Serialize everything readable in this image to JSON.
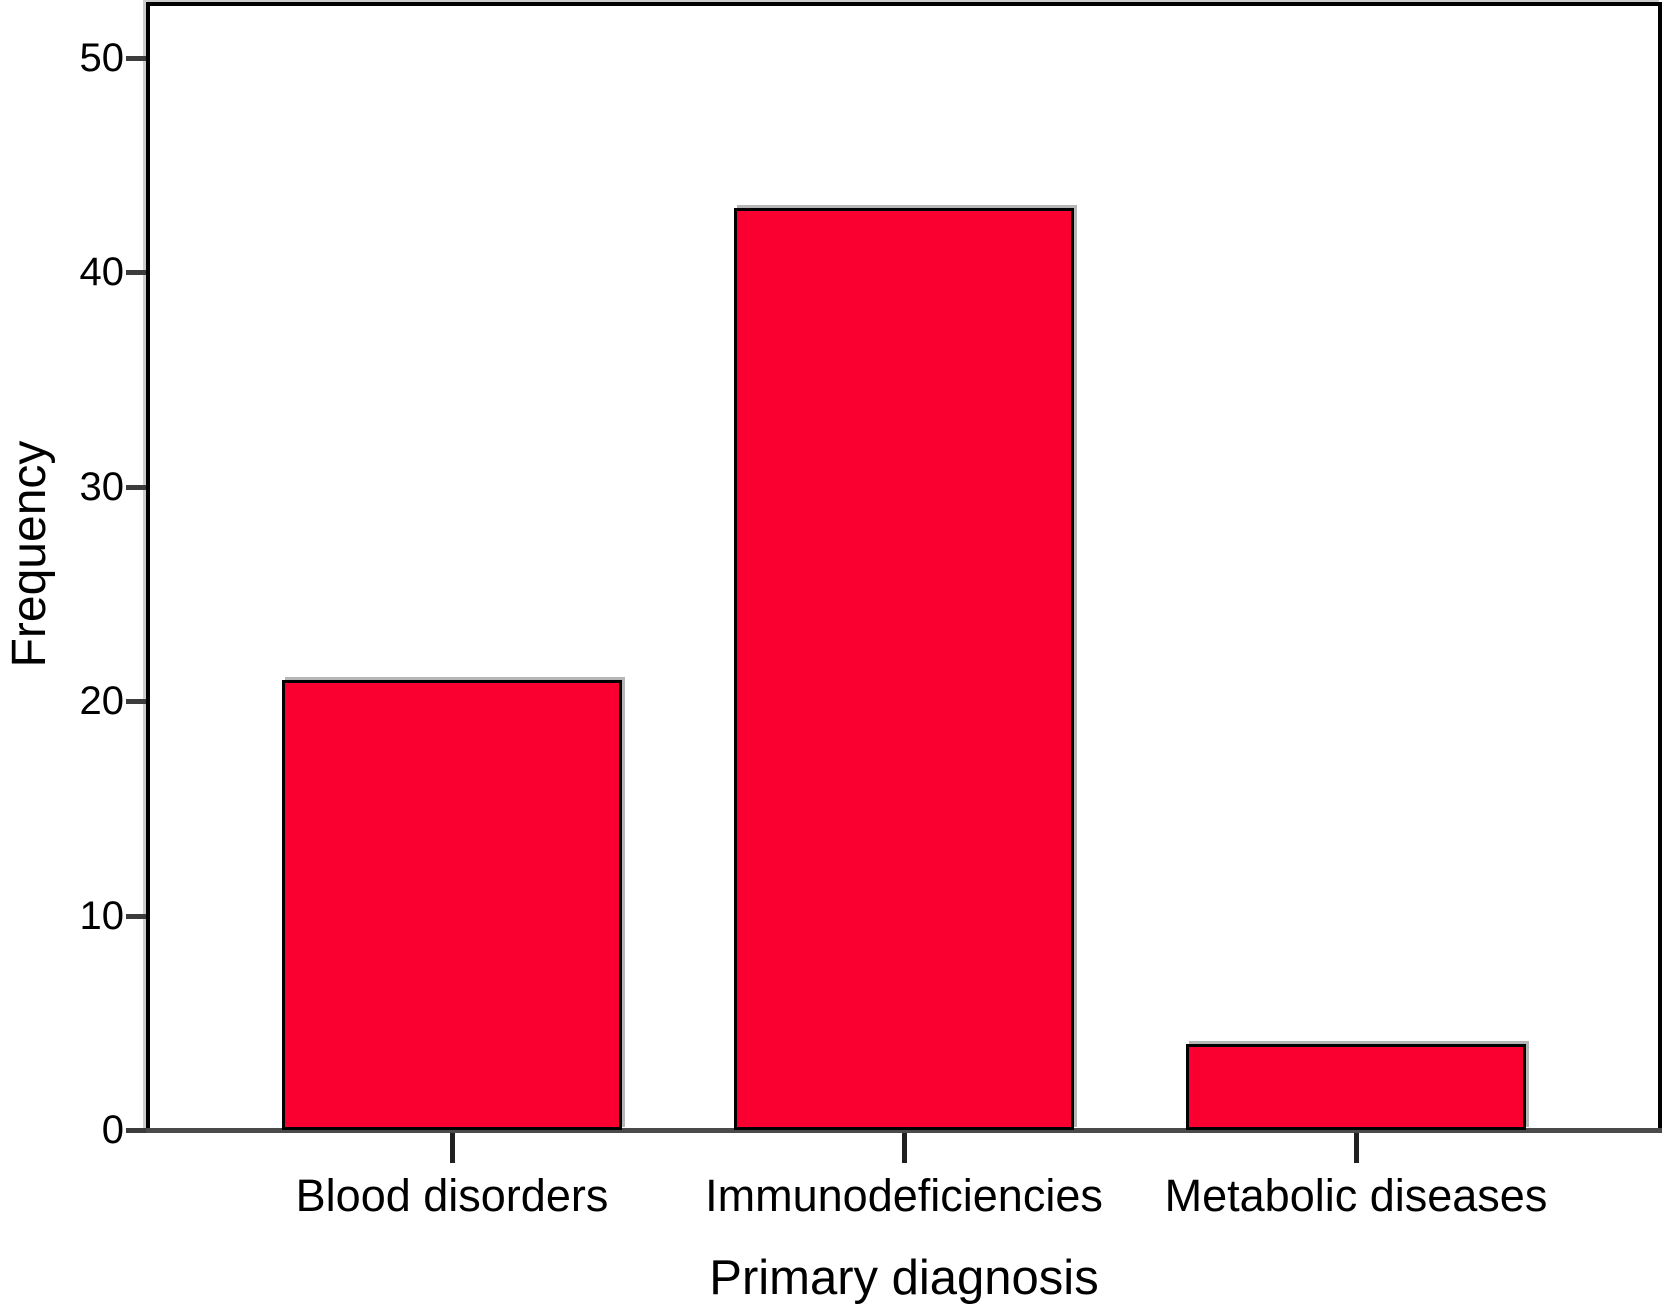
{
  "figure": {
    "background": "#ffffff"
  },
  "chart_data": {
    "type": "bar",
    "title": "",
    "categories": [
      "Blood disorders",
      "Immunodeficiencies",
      "Metabolic diseases"
    ],
    "values": [
      21,
      43,
      4
    ],
    "xlabel": "Primary diagnosis",
    "ylabel": "Frequency",
    "ylim": [
      0,
      50
    ],
    "yticks": [
      0,
      10,
      20,
      30,
      40,
      50
    ],
    "ytick_labels": [
      "0",
      "10",
      "20",
      "30",
      "40",
      "50"
    ],
    "grid": false,
    "legend": "none",
    "bar_color": "#FA0030",
    "bar_border_color": "#000000",
    "frame_color": "#000000",
    "baseline_color": "#4a4a4a",
    "tick_color": "#3c3c3c",
    "text_color": "#000000"
  }
}
